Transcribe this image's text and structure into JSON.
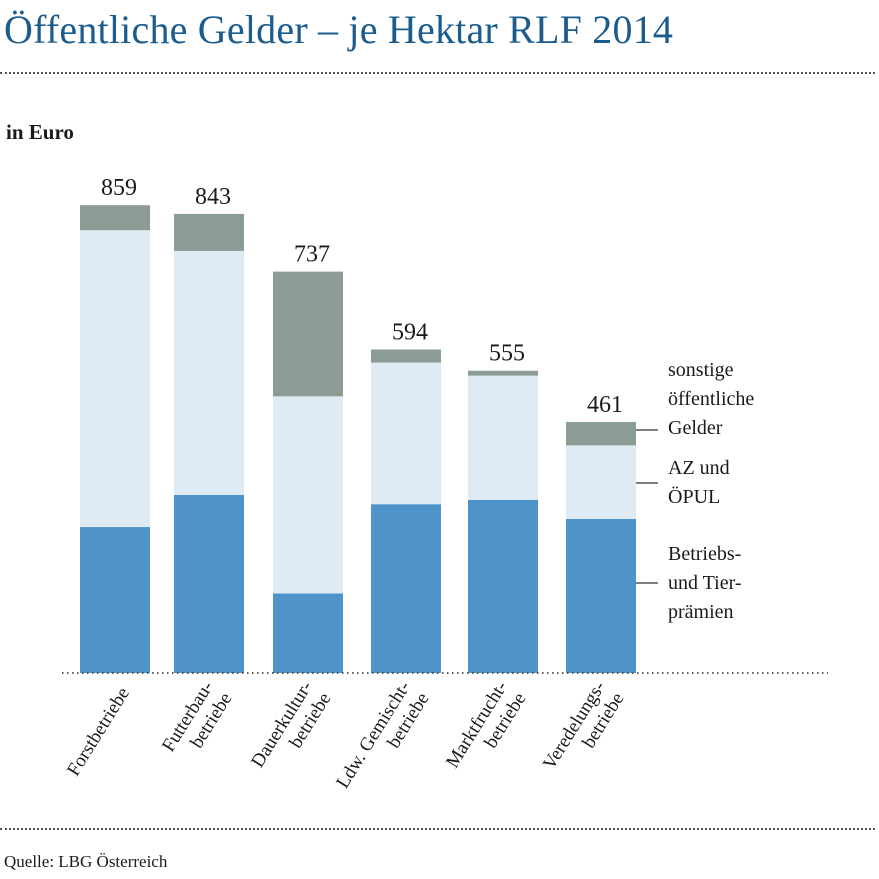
{
  "header": {
    "title": "Öffentliche Gelder – je Hektar RLF 2014",
    "unit_label": "in Euro"
  },
  "footer": {
    "source": "Quelle: LBG Österreich"
  },
  "colors": {
    "title": "#1b5c8f",
    "betriebs": "#4f94c9",
    "az_oepul": "#deebf4",
    "sonstige": "#8b9c95"
  },
  "chart_data": {
    "type": "bar",
    "stacked": true,
    "title": "Öffentliche Gelder – je Hektar RLF 2014",
    "ylabel": "in Euro",
    "ylim": [
      0,
      900
    ],
    "grid": false,
    "legend_position": "right",
    "categories": [
      [
        "Forstbetriebe"
      ],
      [
        "Futterbau-",
        "betriebe"
      ],
      [
        "Dauerkultur-",
        "betriebe"
      ],
      [
        "Ldw. Gemischt-",
        "betriebe"
      ],
      [
        "Marktfrucht-",
        "betriebe"
      ],
      [
        "Veredelungs-",
        "betriebe"
      ]
    ],
    "totals": [
      "859",
      "843",
      "737",
      "594",
      "555",
      "461"
    ],
    "series": [
      {
        "name": [
          "Betriebs-",
          "und Tier-",
          "prämien"
        ],
        "color": "#4f94c9",
        "values": [
          268,
          327,
          146,
          310,
          318,
          283
        ]
      },
      {
        "name": [
          "AZ und",
          "ÖPUL"
        ],
        "color": "#deebf4",
        "values": [
          545,
          448,
          362,
          260,
          228,
          135
        ]
      },
      {
        "name": [
          "sonstige",
          "öffentliche",
          "Gelder"
        ],
        "color": "#8b9c95",
        "values": [
          46,
          68,
          229,
          24,
          9,
          43
        ]
      }
    ]
  }
}
